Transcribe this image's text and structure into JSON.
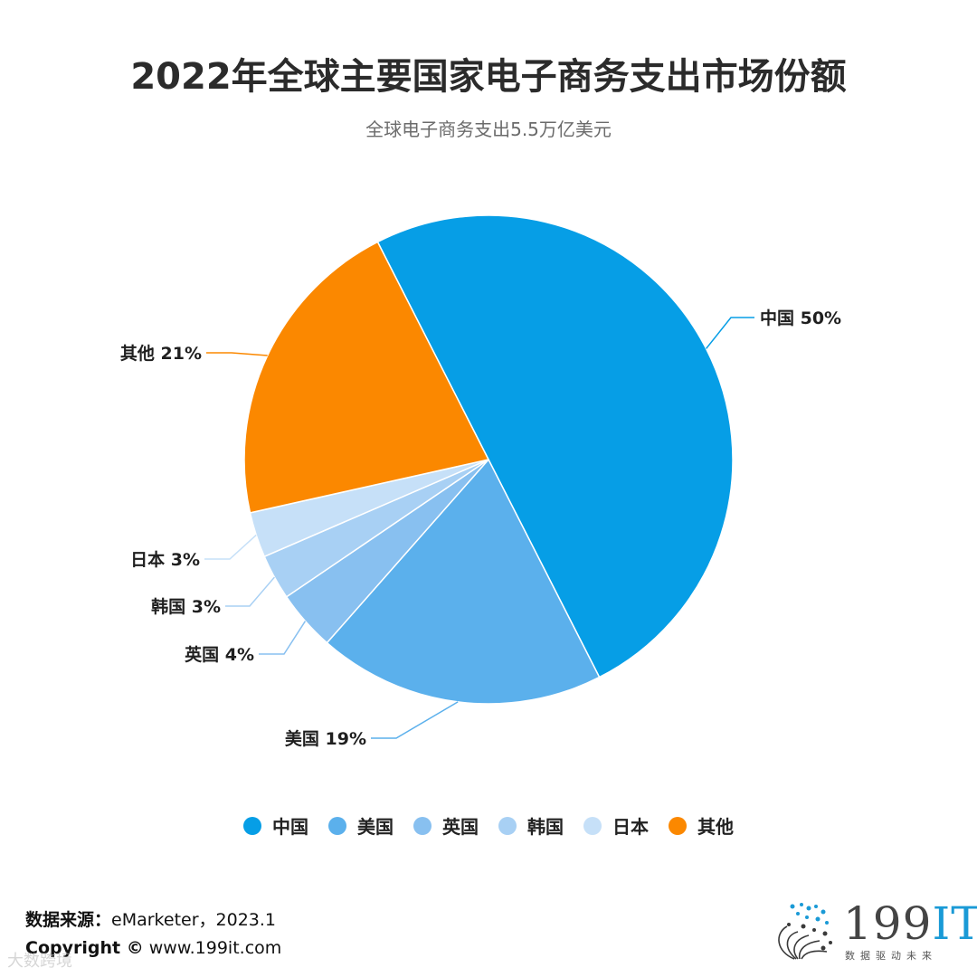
{
  "title": "2022年全球主要国家电子商务支出市场份额",
  "subtitle": "全球电子商务支出5.5万亿美元",
  "chart_data": {
    "type": "pie",
    "title": "2022年全球主要国家电子商务支出市场份额",
    "subtitle": "全球电子商务支出5.5万亿美元",
    "legend_position": "bottom",
    "slices": [
      {
        "name": "中国",
        "value": 50,
        "label": "中国 50%",
        "color": "#069ee6"
      },
      {
        "name": "美国",
        "value": 19,
        "label": "美国 19%",
        "color": "#5bb0ec"
      },
      {
        "name": "英国",
        "value": 4,
        "label": "英国 4%",
        "color": "#88c0f0"
      },
      {
        "name": "韩国",
        "value": 3,
        "label": "韩国 3%",
        "color": "#a8d0f4"
      },
      {
        "name": "日本",
        "value": 3,
        "label": "日本 3%",
        "color": "#c6e0f8"
      },
      {
        "name": "其他",
        "value": 21,
        "label": "其他 21%",
        "color": "#fb8800"
      }
    ]
  },
  "legend": [
    {
      "label": "中国",
      "color": "#069ee6"
    },
    {
      "label": "美国",
      "color": "#5bb0ec"
    },
    {
      "label": "英国",
      "color": "#88c0f0"
    },
    {
      "label": "韩国",
      "color": "#a8d0f4"
    },
    {
      "label": "日本",
      "color": "#c6e0f8"
    },
    {
      "label": "其他",
      "color": "#fb8800"
    }
  ],
  "footer": {
    "source_label": "数据来源：",
    "source_value": "eMarketer，2023.1",
    "copyright_label": "Copyright ©",
    "copyright_value": " www.199it.com",
    "watermark": "大数跨境"
  },
  "logo": {
    "brand_num": "199",
    "brand_it": "IT",
    "slogan": "数据驱动未来"
  }
}
